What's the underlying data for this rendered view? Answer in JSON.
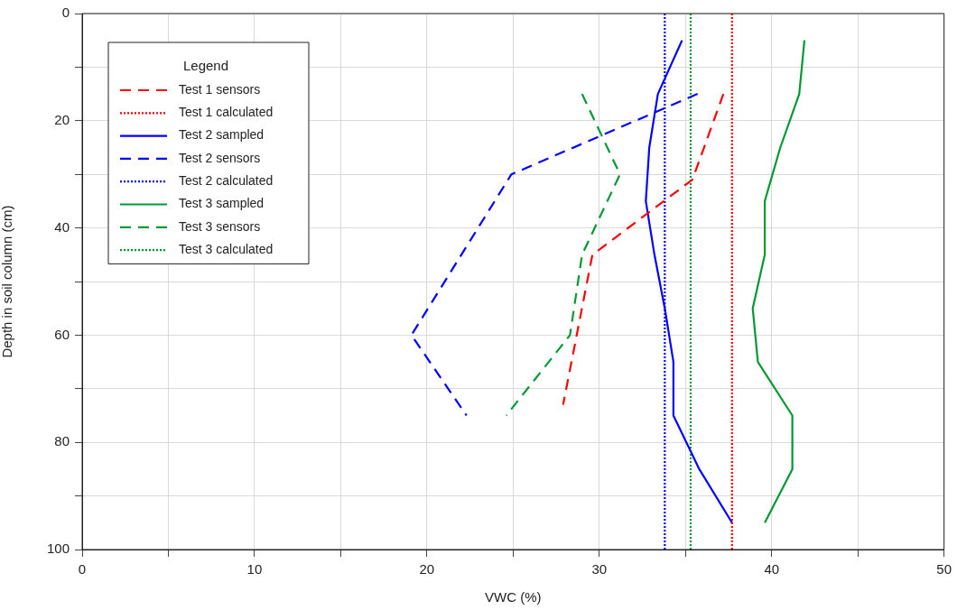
{
  "chart_data": {
    "type": "line",
    "xlabel": "VWC (%)",
    "ylabel": "Depth in soil column (cm)",
    "legend_title": "Legend",
    "legend": "top left",
    "grid": true,
    "marker": "none",
    "xlim": [
      0,
      50
    ],
    "xticks": [
      0,
      {
        "value": 5,
        "label": null
      },
      10,
      {
        "value": 15,
        "label": null
      },
      20,
      {
        "value": 25,
        "label": null
      },
      30,
      {
        "value": 35,
        "label": null
      },
      40,
      {
        "value": 45,
        "label": null
      },
      50
    ],
    "ylim": [
      100,
      0
    ],
    "yticks": [
      0,
      {
        "value": 10,
        "label": null
      },
      20,
      {
        "value": 30,
        "label": null
      },
      40,
      {
        "value": 50,
        "label": null
      },
      60,
      {
        "value": 70,
        "label": null
      },
      80,
      {
        "value": 90,
        "label": null
      },
      100
    ],
    "series": [
      {
        "name": "Test 1 sensors",
        "color": "#ff0000",
        "line_style": "dashed",
        "x": [
          37.2,
          35.4,
          29.6,
          27.9
        ],
        "values": [
          15,
          31,
          45,
          73
        ]
      },
      {
        "name": "Test 1 calculated",
        "color": "#ff0000",
        "line_style": "dotted",
        "x": [
          37.7,
          37.7
        ],
        "values": [
          0,
          100
        ]
      },
      {
        "name": "Test 2 sampled",
        "color": "#0000ff",
        "line_style": "solid",
        "x": [
          34.8,
          33.4,
          32.9,
          32.7,
          33.2,
          33.8,
          34.3,
          34.3,
          35.8,
          37.7
        ],
        "values": [
          5,
          15,
          25,
          35,
          45,
          55,
          65,
          75,
          85,
          95
        ]
      },
      {
        "name": "Test 2 sensors",
        "color": "#0000ff",
        "line_style": "dashed",
        "x": [
          35.7,
          24.9,
          19.1,
          22.3
        ],
        "values": [
          15,
          30,
          60,
          75
        ]
      },
      {
        "name": "Test 2 calculated",
        "color": "#0000ff",
        "line_style": "dotted",
        "x": [
          33.8,
          33.8
        ],
        "values": [
          0,
          100
        ]
      },
      {
        "name": "Test 3 sampled",
        "color": "#009933",
        "line_style": "solid",
        "x": [
          41.9,
          41.6,
          40.5,
          39.6,
          39.6,
          38.9,
          39.2,
          41.2,
          41.2,
          39.6
        ],
        "values": [
          5,
          15,
          25,
          35,
          45,
          55,
          65,
          75,
          85,
          95
        ]
      },
      {
        "name": "Test 3 sensors",
        "color": "#009933",
        "line_style": "dashed",
        "x": [
          29.0,
          31.2,
          29.0,
          28.3,
          24.6
        ],
        "values": [
          15,
          30,
          45,
          60,
          75
        ]
      },
      {
        "name": "Test 3 calculated",
        "color": "#009933",
        "line_style": "dotted",
        "x": [
          35.3,
          35.3
        ],
        "values": [
          0,
          100
        ]
      }
    ]
  }
}
